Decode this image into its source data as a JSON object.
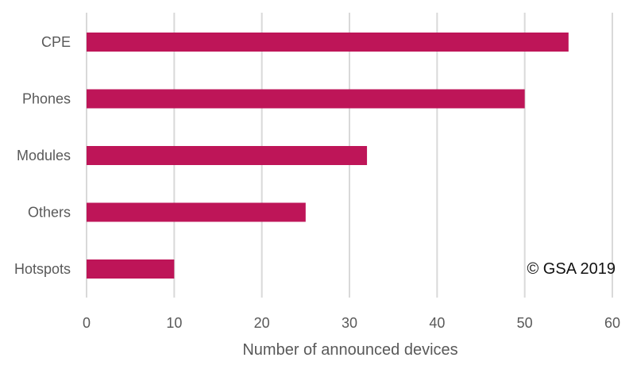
{
  "chart_data": {
    "type": "bar",
    "orientation": "horizontal",
    "categories": [
      "CPE",
      "Phones",
      "Modules",
      "Others",
      "Hotspots"
    ],
    "values": [
      55,
      50,
      32,
      25,
      10
    ],
    "xlabel": "Number of announced devices",
    "ylabel": "",
    "xlim": [
      0,
      60
    ],
    "xticks": [
      "0",
      "10",
      "20",
      "30",
      "40",
      "50",
      "60"
    ],
    "grid": "vertical",
    "bar_color": "#be1558",
    "watermark": "© GSA 2019"
  }
}
